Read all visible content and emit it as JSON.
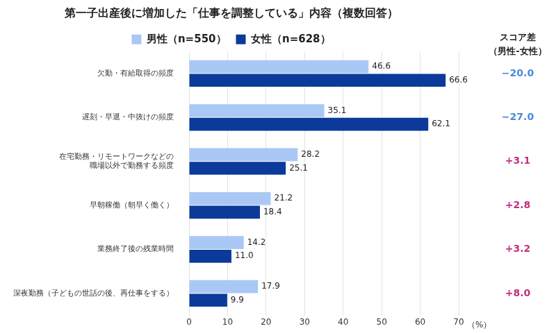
{
  "chart_data": {
    "type": "bar",
    "orientation": "horizontal",
    "title": "第一子出産後に増加した「仕事を調整している」内容（複数回答）",
    "xlabel": "（%）",
    "categories": [
      "欠勤・有給取得の頻度",
      "遅刻・早退・中抜けの頻度",
      [
        "在宅勤務・リモートワークなどの",
        "職場以外で勤務する頻度"
      ],
      "早朝稼働（朝早く働く）",
      "業務終了後の残業時間",
      "深夜勤務（子どもの世話の後、再仕事をする）"
    ],
    "series": [
      {
        "name": "男性（n=550）",
        "color": "#a9c8f5",
        "values": [
          46.6,
          35.1,
          28.2,
          21.2,
          14.2,
          17.9
        ],
        "value_labels": [
          "46.6",
          "35.1",
          "28.2",
          "21.2",
          "14.2",
          "17.9"
        ]
      },
      {
        "name": "女性（n=628）",
        "color": "#0b3a9a",
        "values": [
          66.6,
          62.1,
          25.1,
          18.4,
          11.0,
          9.9
        ],
        "value_labels": [
          "66.6",
          "62.1",
          "25.1",
          "18.4",
          "11.0",
          "9.9"
        ]
      }
    ],
    "score_diff": {
      "title": [
        "スコア差",
        "（男性-女性）"
      ],
      "values": [
        -20.0,
        -27.0,
        3.1,
        2.8,
        3.2,
        8.0
      ],
      "value_labels": [
        "−20.0",
        "−27.0",
        "+3.1",
        "+2.8",
        "+3.2",
        "+8.0"
      ],
      "colors": [
        "#4a8ad6",
        "#4a8ad6",
        "#c2307f",
        "#c2307f",
        "#c2307f",
        "#c2307f"
      ]
    },
    "xlim": [
      0,
      70
    ],
    "xticks": [
      0,
      10,
      20,
      30,
      40,
      50,
      60,
      70
    ],
    "grid": true,
    "legend": "top",
    "data_labels": true
  }
}
